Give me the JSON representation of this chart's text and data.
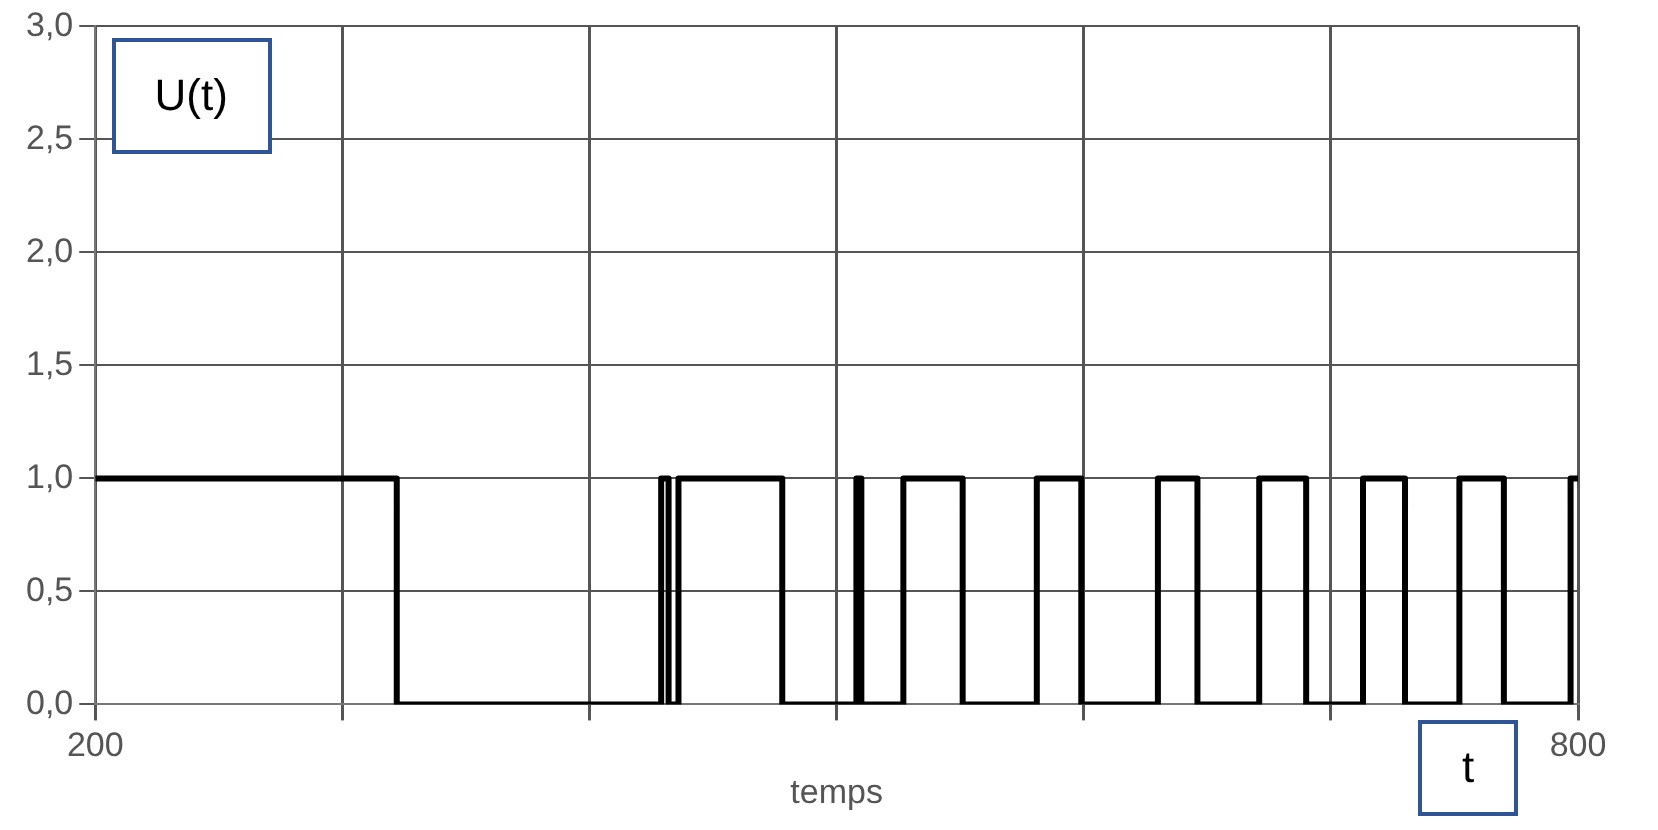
{
  "chart_data": {
    "type": "step",
    "xlabel": "temps",
    "annotations": [
      "U(t)",
      "t"
    ],
    "x": [
      200,
      322,
      429,
      432,
      436,
      478,
      508,
      510,
      527,
      551,
      581,
      599,
      630,
      646,
      671,
      690,
      713,
      730,
      752,
      770,
      797,
      800
    ],
    "series": [
      {
        "color": "#000000",
        "values": [
          1,
          0,
          1,
          0,
          1,
          0,
          1,
          0,
          1,
          0,
          1,
          0,
          1,
          0,
          1,
          0,
          1,
          0,
          1,
          0,
          1,
          1
        ]
      }
    ],
    "xlim": [
      200,
      800
    ],
    "xticks": [
      200,
      {
        "value": 300,
        "label": null
      },
      {
        "value": 400,
        "label": null
      },
      {
        "value": 500,
        "label": null
      },
      {
        "value": 600,
        "label": null
      },
      {
        "value": 700,
        "label": null
      },
      800
    ],
    "ylim": [
      0,
      3
    ],
    "yticks": [
      {
        "value": 0,
        "label": "0,0"
      },
      {
        "value": 0.5,
        "label": "0,5"
      },
      {
        "value": 1,
        "label": "1,0"
      },
      {
        "value": 1.5,
        "label": "1,5"
      },
      {
        "value": 2,
        "label": "2,0"
      },
      {
        "value": 2.5,
        "label": "2,5"
      },
      {
        "value": 3,
        "label": "3,0"
      }
    ],
    "grid": true,
    "legend": false,
    "marker": "none",
    "line_style": "solid"
  }
}
